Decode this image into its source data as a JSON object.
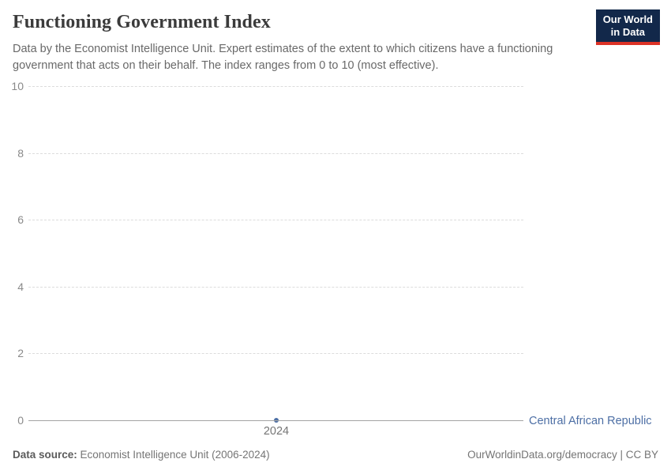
{
  "header": {
    "title": "Functioning Government Index",
    "subtitle": "Data by the Economist Intelligence Unit. Expert estimates of the extent to which citizens have a functioning government that acts on their behalf. The index ranges from 0 to 10 (most effective).",
    "logo": {
      "line1": "Our World",
      "line2": "in Data"
    }
  },
  "chart_data": {
    "type": "line",
    "title": "Functioning Government Index",
    "series": [
      {
        "name": "Central African Republic",
        "x": [
          2024
        ],
        "values": [
          0
        ],
        "color": "#4d6fa5"
      }
    ],
    "x_tick_labels": [
      "2024"
    ],
    "yticks": [
      0,
      2,
      4,
      6,
      8,
      10
    ],
    "ylim": [
      0,
      10
    ],
    "grid": "horizontal-dashed",
    "legend_position": "right-of-line-end"
  },
  "footer": {
    "source_label": "Data source:",
    "source_text": " Economist Intelligence Unit (2006-2024)",
    "right_text": "OurWorldinData.org/democracy | CC BY"
  },
  "colors": {
    "series_blue": "#4d6fa5",
    "logo_navy": "#12284a",
    "logo_red": "#dc3226",
    "gridline": "#dcdcdc",
    "axis": "#a3a3a3"
  }
}
